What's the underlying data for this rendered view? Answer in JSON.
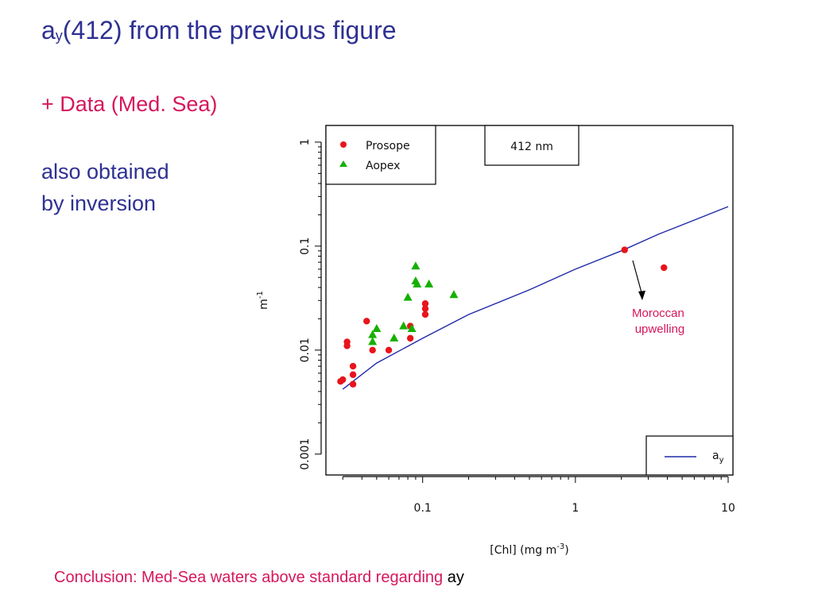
{
  "slide": {
    "title_main": "a",
    "title_sub": "y",
    "title_rest": "(412) from the previous figure",
    "bullet": "+ Data (Med. Sea)",
    "note_line1": "also obtained",
    "note_line2": "by inversion",
    "conclusion": "Conclusion: Med-Sea waters above standard regarding ",
    "conclusion_tail": "ay"
  },
  "chart_data": {
    "type": "scatter",
    "title": "412 nm",
    "xlabel": "[Chl] (mg  m",
    "xlabel_sup": "-3",
    "xlabel_close": ")",
    "ylabel": "m",
    "ylabel_sup": "-1",
    "xscale": "log",
    "yscale": "log",
    "xlim": [
      0.025,
      10
    ],
    "ylim": [
      0.0007,
      1.3
    ],
    "x_ticks": [
      0.1,
      1,
      10
    ],
    "x_tick_labels": [
      "0.1",
      "1",
      "10"
    ],
    "y_ticks": [
      0.001,
      0.01,
      0.1,
      1
    ],
    "y_tick_labels": [
      "0.001",
      "0.01",
      "0.1",
      "1"
    ],
    "grid": false,
    "legend_placement": "top-left",
    "series": [
      {
        "name": "Prosope",
        "marker": "circle",
        "color": "#e8141b",
        "points": [
          [
            0.029,
            0.005
          ],
          [
            0.03,
            0.0052
          ],
          [
            0.032,
            0.012
          ],
          [
            0.032,
            0.011
          ],
          [
            0.035,
            0.007
          ],
          [
            0.035,
            0.0058
          ],
          [
            0.035,
            0.0047
          ],
          [
            0.043,
            0.019
          ],
          [
            0.047,
            0.01
          ],
          [
            0.06,
            0.01
          ],
          [
            0.083,
            0.017
          ],
          [
            0.083,
            0.013
          ],
          [
            0.104,
            0.028
          ],
          [
            0.104,
            0.025
          ],
          [
            0.104,
            0.022
          ],
          [
            2.1,
            0.092
          ],
          [
            3.8,
            0.062
          ]
        ]
      },
      {
        "name": "Aopex",
        "marker": "triangle",
        "color": "#15b000",
        "points": [
          [
            0.047,
            0.014
          ],
          [
            0.047,
            0.012
          ],
          [
            0.05,
            0.016
          ],
          [
            0.065,
            0.013
          ],
          [
            0.075,
            0.017
          ],
          [
            0.08,
            0.032
          ],
          [
            0.085,
            0.016
          ],
          [
            0.09,
            0.064
          ],
          [
            0.09,
            0.046
          ],
          [
            0.092,
            0.043
          ],
          [
            0.11,
            0.043
          ],
          [
            0.16,
            0.034
          ]
        ]
      },
      {
        "name": "a",
        "name_sub": "y",
        "type": "line",
        "color": "#1f2aa8",
        "points": [
          [
            0.03,
            0.0042
          ],
          [
            0.05,
            0.0075
          ],
          [
            0.1,
            0.013
          ],
          [
            0.2,
            0.022
          ],
          [
            0.5,
            0.038
          ],
          [
            1,
            0.06
          ],
          [
            2,
            0.09
          ],
          [
            3.5,
            0.13
          ],
          [
            5,
            0.16
          ],
          [
            10,
            0.24
          ]
        ]
      }
    ],
    "annotation": {
      "line1": "Moroccan",
      "line2": "upwelling",
      "color": "#d6175c"
    }
  }
}
